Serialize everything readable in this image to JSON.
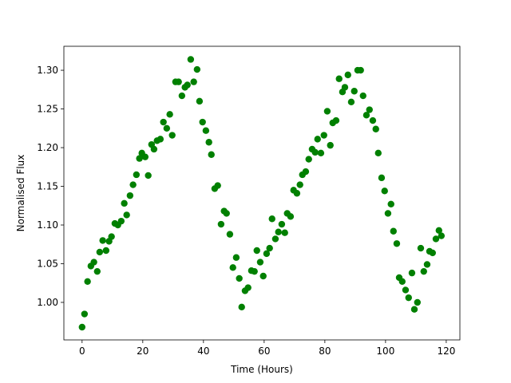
{
  "chart_data": {
    "type": "scatter",
    "x_label": "Time (Hours)",
    "y_label": "Normalised Flux",
    "color": "#008000",
    "grid": false,
    "xlim": [
      -6,
      124.5
    ],
    "ylim": [
      0.9515,
      1.331
    ],
    "xticks": [
      0,
      20,
      40,
      60,
      80,
      100,
      120
    ],
    "yticks": [
      {
        "value": 1,
        "label": "1.00"
      },
      1.05,
      {
        "value": 1.1,
        "label": "1.10"
      },
      1.15,
      {
        "value": 1.2,
        "label": "1.20"
      },
      1.25,
      {
        "value": 1.3,
        "label": "1.30"
      }
    ],
    "x": [
      0,
      0.8,
      1.8,
      2.9,
      3.9,
      5,
      5.8,
      6.8,
      7.9,
      8.9,
      9.7,
      10.8,
      11.8,
      12.9,
      13.9,
      14.7,
      15.8,
      16.8,
      17.9,
      18.9,
      19.7,
      20.8,
      21.8,
      22.9,
      23.7,
      24.7,
      25.8,
      26.8,
      27.9,
      28.9,
      29.7,
      30.8,
      31.8,
      32.9,
      33.9,
      34.7,
      35.8,
      36.8,
      37.9,
      38.7,
      39.7,
      40.8,
      41.8,
      42.6,
      43.7,
      44.7,
      45.8,
      46.8,
      47.6,
      48.7,
      49.7,
      50.8,
      51.8,
      52.6,
      53.7,
      54.7,
      55.8,
      56.8,
      57.6,
      58.7,
      59.7,
      60.8,
      61.8,
      62.6,
      63.7,
      64.7,
      65.8,
      66.8,
      67.6,
      68.7,
      69.7,
      70.8,
      71.8,
      72.6,
      73.7,
      74.7,
      75.8,
      76.8,
      77.6,
      78.7,
      79.7,
      80.8,
      81.8,
      82.6,
      83.7,
      84.7,
      85.8,
      86.6,
      87.6,
      88.7,
      89.7,
      90.8,
      91.8,
      92.6,
      93.7,
      94.7,
      95.8,
      96.8,
      97.6,
      98.7,
      99.7,
      100.8,
      101.8,
      102.6,
      103.7,
      104.5,
      105.5,
      106.6,
      107.6,
      108.7,
      109.5,
      110.5,
      111.6,
      112.6,
      113.7,
      114.5,
      115.5,
      116.6,
      117.6,
      118.4
    ],
    "values": [
      0.968,
      0.985,
      1.027,
      1.047,
      1.052,
      1.04,
      1.065,
      1.08,
      1.067,
      1.079,
      1.085,
      1.102,
      1.1,
      1.105,
      1.128,
      1.113,
      1.138,
      1.152,
      1.165,
      1.186,
      1.193,
      1.188,
      1.164,
      1.204,
      1.198,
      1.209,
      1.211,
      1.233,
      1.225,
      1.243,
      1.216,
      1.285,
      1.285,
      1.267,
      1.278,
      1.281,
      1.314,
      1.285,
      1.301,
      1.26,
      1.233,
      1.222,
      1.207,
      1.191,
      1.147,
      1.151,
      1.101,
      1.118,
      1.115,
      1.088,
      1.045,
      1.058,
      1.031,
      0.994,
      1.015,
      1.019,
      1.041,
      1.04,
      1.067,
      1.052,
      1.034,
      1.063,
      1.07,
      1.108,
      1.082,
      1.091,
      1.101,
      1.09,
      1.115,
      1.111,
      1.145,
      1.141,
      1.152,
      1.165,
      1.169,
      1.185,
      1.198,
      1.194,
      1.211,
      1.193,
      1.216,
      1.247,
      1.203,
      1.232,
      1.235,
      1.289,
      1.272,
      1.278,
      1.294,
      1.259,
      1.273,
      1.3,
      1.3,
      1.267,
      1.242,
      1.249,
      1.235,
      1.224,
      1.193,
      1.161,
      1.144,
      1.115,
      1.127,
      1.092,
      1.076,
      1.032,
      1.027,
      1.016,
      1.006,
      1.038,
      0.991,
      1.0,
      1.07,
      1.04,
      1.049,
      1.066,
      1.064,
      1.082,
      1.093,
      1.086
    ]
  }
}
